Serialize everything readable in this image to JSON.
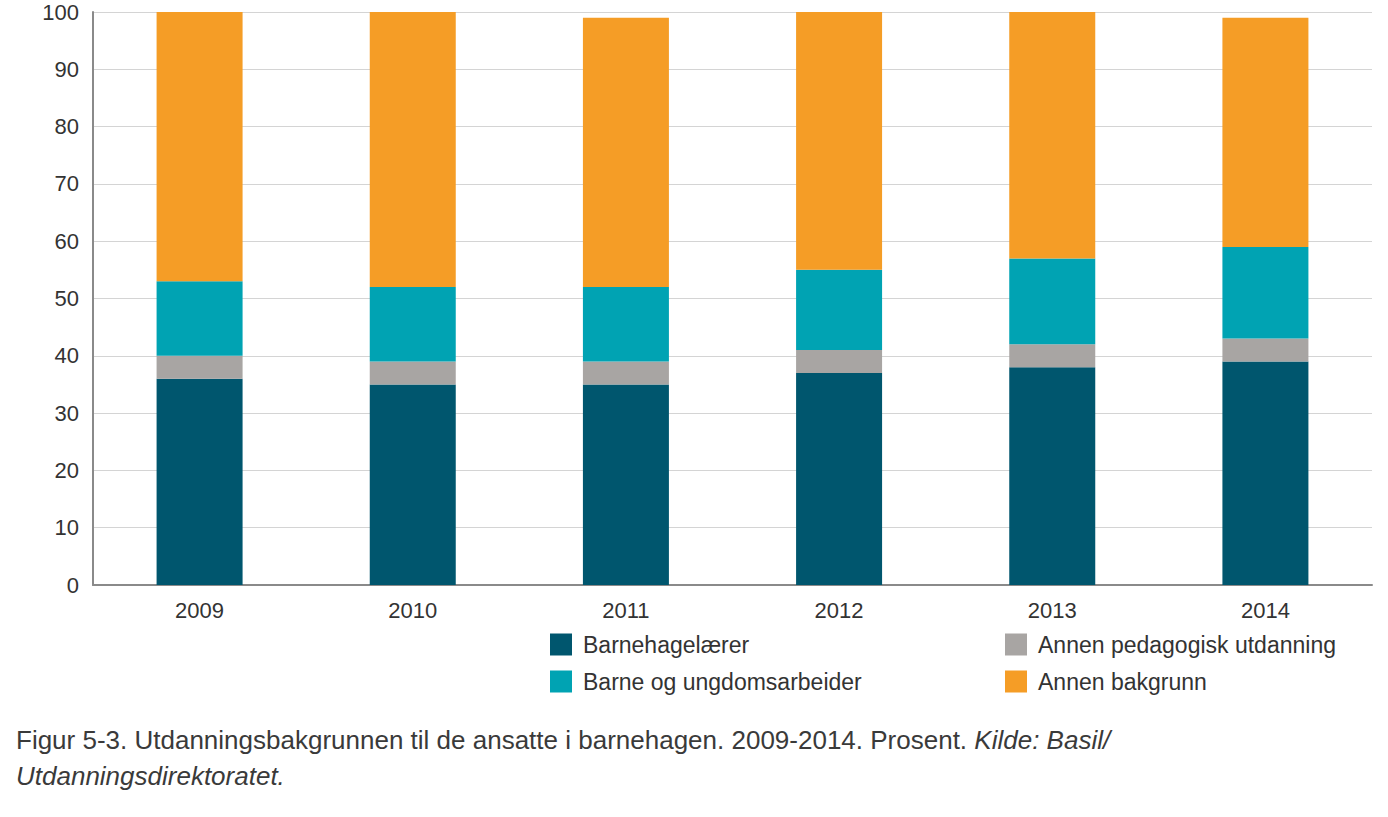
{
  "chart_data": {
    "type": "bar",
    "stacked": true,
    "title": "Figur 5-3. Utdanningsbakgrunnen til de ansatte i barnehagen. 2009-2014. Prosent.",
    "source": "Kilde: Basil/ Utdanningsdirektoratet.",
    "categories": [
      "2009",
      "2010",
      "2011",
      "2012",
      "2013",
      "2014"
    ],
    "series": [
      {
        "name": "Barnehagelærer",
        "color": "#00566e",
        "values": [
          36,
          35,
          35,
          37,
          38,
          39
        ]
      },
      {
        "name": "Annen pedagogisk utdanning",
        "color": "#a8a5a3",
        "values": [
          4,
          4,
          4,
          4,
          4,
          4
        ]
      },
      {
        "name": "Barne og ungdomsarbeider",
        "color": "#00a3b3",
        "values": [
          13,
          13,
          13,
          14,
          15,
          16
        ]
      },
      {
        "name": "Annen bakgrunn",
        "color": "#f59d26",
        "values": [
          47,
          48,
          47,
          45,
          43,
          40
        ]
      }
    ],
    "ylim": [
      0,
      100
    ],
    "yticks": [
      0,
      10,
      20,
      30,
      40,
      50,
      60,
      70,
      80,
      90,
      100
    ],
    "grid": true,
    "legend": "bottom"
  }
}
